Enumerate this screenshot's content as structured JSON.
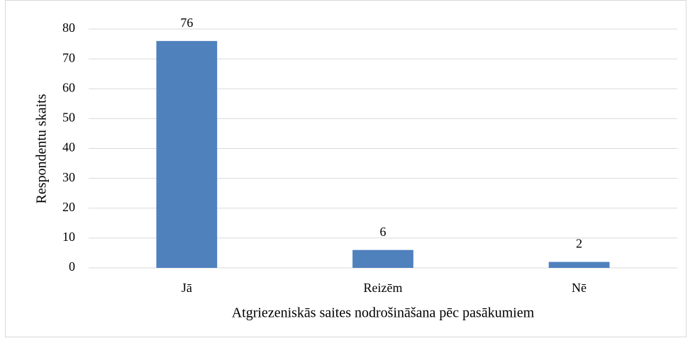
{
  "chart_data": {
    "type": "bar",
    "categories": [
      "Jā",
      "Reizēm",
      "Nē"
    ],
    "values": [
      76,
      6,
      2
    ],
    "color": "#4f81bd",
    "ylim": [
      0,
      80
    ],
    "yticks": [
      0,
      10,
      20,
      30,
      40,
      50,
      60,
      70,
      80
    ],
    "grid": true,
    "xlabel": "Atgriezeniskās saites nodrošināšana pēc pasākumiem",
    "ylabel": "Respondentu skaits"
  }
}
